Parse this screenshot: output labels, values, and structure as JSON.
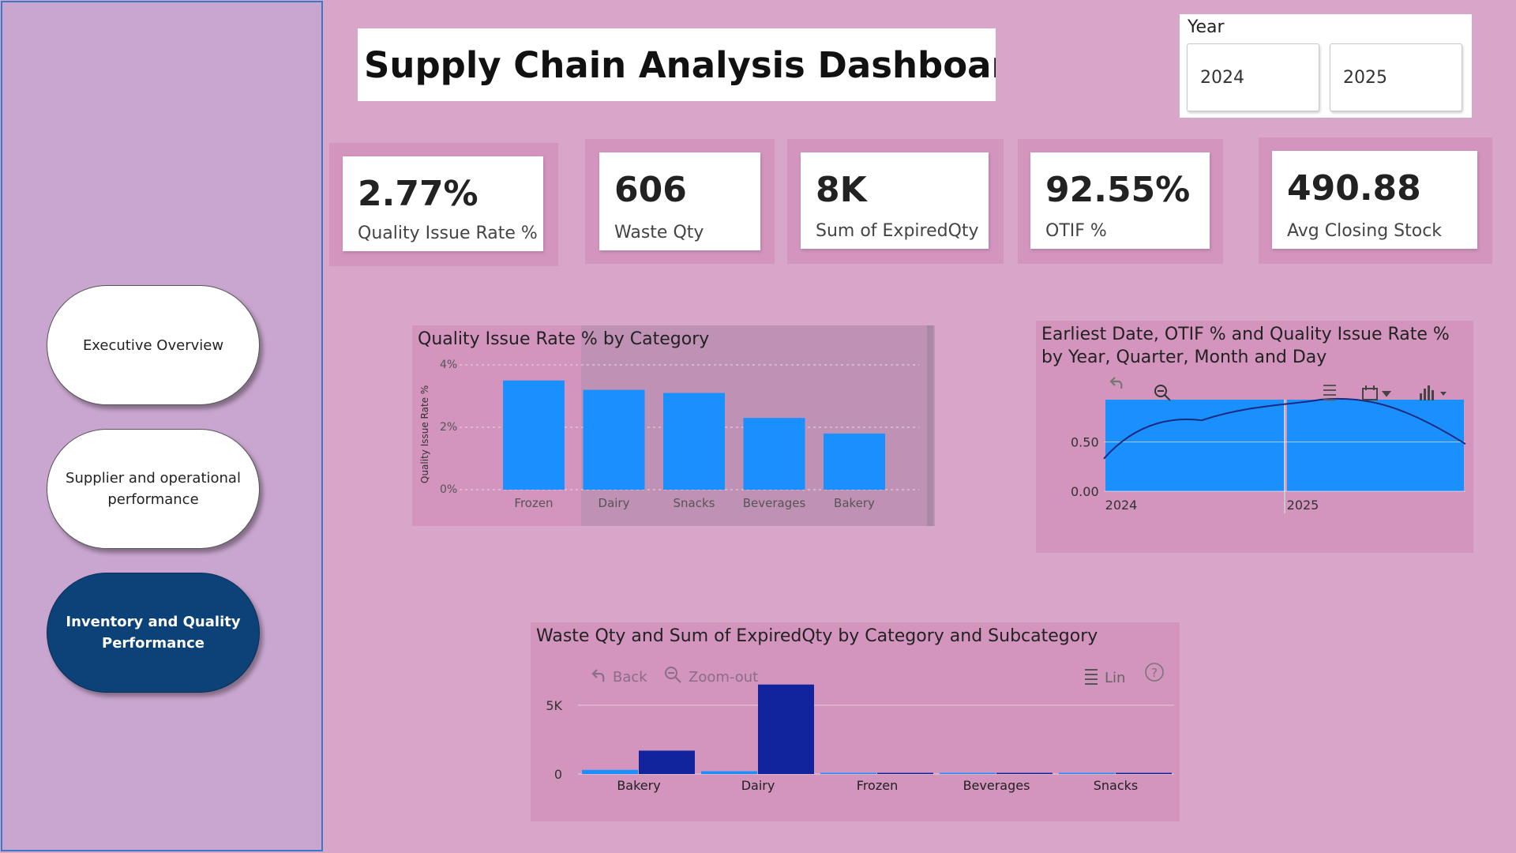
{
  "nav": {
    "items": [
      {
        "label": "Executive Overview",
        "active": false
      },
      {
        "label": "Supplier and operational performance",
        "active": false
      },
      {
        "label": "Inventory and Quality Performance",
        "active": true
      }
    ]
  },
  "header": {
    "title": "Supply Chain Analysis Dashboard"
  },
  "year_slicer": {
    "label": "Year",
    "options": [
      "2024",
      "2025"
    ]
  },
  "kpis": [
    {
      "value": "2.77%",
      "label": "Quality Issue Rate %"
    },
    {
      "value": "606",
      "label": "Waste Qty"
    },
    {
      "value": "8K",
      "label": "Sum of ExpiredQty"
    },
    {
      "value": "92.55%",
      "label": "OTIF %"
    },
    {
      "value": "490.88",
      "label": "Avg Closing Stock"
    }
  ],
  "colors": {
    "bar_light": "#1a90ff",
    "bar_dark": "#12239e",
    "line": "#1a2a80",
    "panel": "#d394bd",
    "active_nav": "#0c4278"
  },
  "chart_data": [
    {
      "type": "bar",
      "title": "Quality Issue Rate % by Category",
      "ylabel": "Quality Issue Rate %",
      "categories": [
        "Frozen",
        "Dairy",
        "Snacks",
        "Beverages",
        "Bakery"
      ],
      "values": [
        3.5,
        3.2,
        3.1,
        2.3,
        1.8
      ],
      "yticks": [
        "0%",
        "2%",
        "4%"
      ],
      "ylim": [
        0,
        4
      ]
    },
    {
      "type": "bar",
      "title_line1": "Earliest Date, OTIF % and Quality Issue Rate %",
      "title_line2": "by Year, Quarter, Month and Day",
      "categories": [
        "2024",
        "2025"
      ],
      "values": [
        0.93,
        0.93
      ],
      "line_values": [
        0.33,
        0.72,
        0.93,
        0.48
      ],
      "yticks": [
        "0.00",
        "0.50"
      ],
      "ylim": [
        0,
        1
      ]
    },
    {
      "type": "bar",
      "title": "Waste Qty and Sum of ExpiredQty by Category and Subcategory",
      "categories": [
        "Bakery",
        "Dairy",
        "Frozen",
        "Beverages",
        "Snacks"
      ],
      "series": [
        {
          "name": "Waste Qty",
          "values": [
            300,
            200,
            50,
            40,
            20
          ]
        },
        {
          "name": "Sum of ExpiredQty",
          "values": [
            1700,
            6500,
            0,
            0,
            0
          ]
        }
      ],
      "yticks": [
        "0",
        "5K"
      ],
      "ylim": [
        0,
        7000
      ]
    }
  ],
  "visual_toolbar": {
    "back": "Back",
    "zoom_out": "Zoom-out",
    "lines": "Lin",
    "help": "?"
  }
}
